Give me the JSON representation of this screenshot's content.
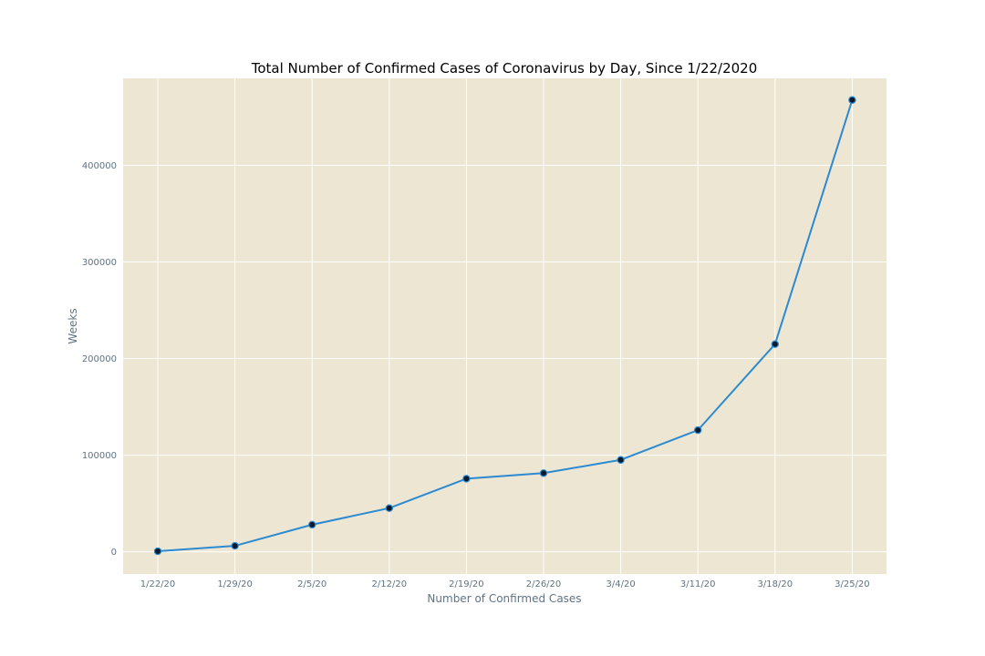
{
  "chart_data": {
    "type": "line",
    "title": "Total Number of Confirmed Cases of Coronavirus by Day, Since 1/22/2020",
    "xlabel": "Number of Confirmed Cases",
    "ylabel": "Weeks",
    "categories": [
      "1/22/20",
      "1/29/20",
      "2/5/20",
      "2/12/20",
      "2/19/20",
      "2/26/20",
      "3/4/20",
      "3/11/20",
      "3/18/20",
      "3/25/20"
    ],
    "series": [
      {
        "values": [
          555,
          6165,
          28060,
          45171,
          75641,
          81395,
          95120,
          125875,
          214910,
          467593
        ]
      }
    ],
    "yticks": [
      0,
      100000,
      200000,
      300000,
      400000
    ],
    "ylim": [
      -23000,
      490000
    ],
    "grid": true,
    "colors": {
      "background": "#ede6d3",
      "grid": "#ffffff",
      "line": "#2b8ad1",
      "marker_face": "#0b1a2b",
      "marker_edge": "#2b8ad1"
    }
  }
}
